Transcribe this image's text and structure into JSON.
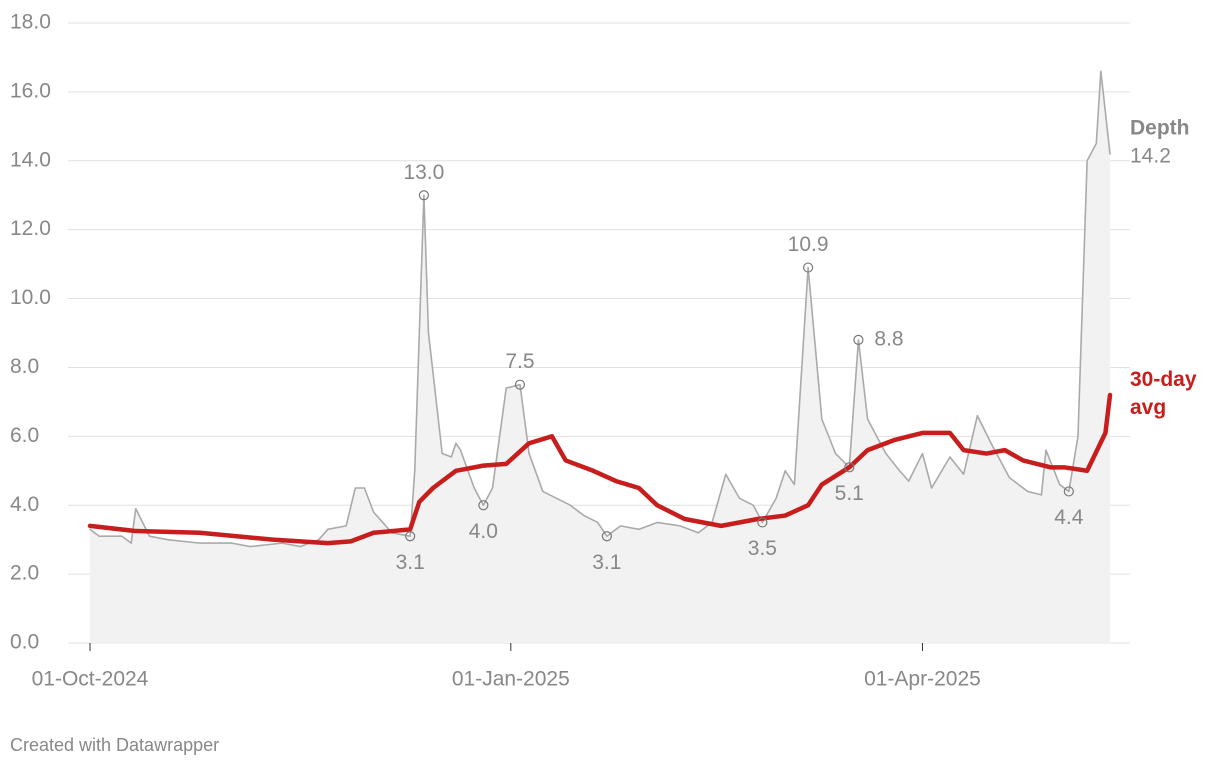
{
  "chart_data": {
    "type": "line",
    "footer": "Created with Datawrapper",
    "xlim": [
      "2024-10-01",
      "2025-05-12"
    ],
    "xticks": [
      {
        "value": "2024-10-01",
        "label": "01-Oct-2024"
      },
      {
        "value": "2025-01-01",
        "label": "01-Jan-2025"
      },
      {
        "value": "2025-04-01",
        "label": "01-Apr-2025"
      }
    ],
    "ylim": [
      0,
      18
    ],
    "yticks": [
      {
        "value": 0,
        "label": "0.0"
      },
      {
        "value": 2,
        "label": "2.0"
      },
      {
        "value": 4,
        "label": "4.0"
      },
      {
        "value": 6,
        "label": "6.0"
      },
      {
        "value": 8,
        "label": "8.0"
      },
      {
        "value": 10,
        "label": "10.0"
      },
      {
        "value": 12,
        "label": "12.0"
      },
      {
        "value": 14,
        "label": "14.0"
      },
      {
        "value": 16,
        "label": "16.0"
      },
      {
        "value": 18,
        "label": "18.0"
      }
    ],
    "grid": true,
    "series": [
      {
        "name": "Depth",
        "color": "#aaaaaa",
        "area_color": "#f2f2f2",
        "end_label": "14.2",
        "x": [
          "2024-10-01",
          "2024-10-03",
          "2024-10-08",
          "2024-10-10",
          "2024-10-11",
          "2024-10-14",
          "2024-10-18",
          "2024-10-25",
          "2024-11-01",
          "2024-11-05",
          "2024-11-12",
          "2024-11-16",
          "2024-11-20",
          "2024-11-22",
          "2024-11-26",
          "2024-11-28",
          "2024-11-30",
          "2024-12-02",
          "2024-12-06",
          "2024-12-10",
          "2024-12-11",
          "2024-12-13",
          "2024-12-14",
          "2024-12-17",
          "2024-12-19",
          "2024-12-20",
          "2024-12-21",
          "2024-12-24",
          "2024-12-26",
          "2024-12-28",
          "2024-12-31",
          "2025-01-03",
          "2025-01-05",
          "2025-01-08",
          "2025-01-11",
          "2025-01-14",
          "2025-01-17",
          "2025-01-20",
          "2025-01-22",
          "2025-01-25",
          "2025-01-29",
          "2025-02-02",
          "2025-02-07",
          "2025-02-11",
          "2025-02-14",
          "2025-02-17",
          "2025-02-20",
          "2025-02-23",
          "2025-02-25",
          "2025-02-28",
          "2025-03-02",
          "2025-03-04",
          "2025-03-07",
          "2025-03-10",
          "2025-03-13",
          "2025-03-16",
          "2025-03-18",
          "2025-03-20",
          "2025-03-24",
          "2025-03-27",
          "2025-03-29",
          "2025-04-01",
          "2025-04-03",
          "2025-04-07",
          "2025-04-10",
          "2025-04-13",
          "2025-04-16",
          "2025-04-20",
          "2025-04-24",
          "2025-04-27",
          "2025-04-28",
          "2025-05-01",
          "2025-05-03",
          "2025-05-05",
          "2025-05-07",
          "2025-05-09",
          "2025-05-10",
          "2025-05-12"
        ],
        "values": [
          3.3,
          3.1,
          3.1,
          2.9,
          3.9,
          3.1,
          3.0,
          2.9,
          2.9,
          2.8,
          2.9,
          2.8,
          3.0,
          3.3,
          3.4,
          4.5,
          4.5,
          3.8,
          3.2,
          3.1,
          5.0,
          13.0,
          9.0,
          5.5,
          5.4,
          5.8,
          5.6,
          4.5,
          4.0,
          4.5,
          7.4,
          7.5,
          5.5,
          4.4,
          4.2,
          4.0,
          3.7,
          3.5,
          3.1,
          3.4,
          3.3,
          3.5,
          3.4,
          3.2,
          3.5,
          4.9,
          4.2,
          4.0,
          3.5,
          4.2,
          5.0,
          4.6,
          10.9,
          6.5,
          5.5,
          5.1,
          8.8,
          6.5,
          5.5,
          5.0,
          4.7,
          5.5,
          4.5,
          5.4,
          4.9,
          6.6,
          5.8,
          4.8,
          4.4,
          4.3,
          5.6,
          4.6,
          4.4,
          6.0,
          14.0,
          14.5,
          16.6,
          14.2
        ]
      },
      {
        "name": "30-day avg",
        "color": "#c71e1d",
        "x": [
          "2024-10-01",
          "2024-10-11",
          "2024-10-25",
          "2024-11-10",
          "2024-11-22",
          "2024-11-27",
          "2024-12-02",
          "2024-12-10",
          "2024-12-12",
          "2024-12-15",
          "2024-12-20",
          "2024-12-26",
          "2024-12-31",
          "2025-01-05",
          "2025-01-10",
          "2025-01-13",
          "2025-01-19",
          "2025-01-24",
          "2025-01-29",
          "2025-02-02",
          "2025-02-08",
          "2025-02-16",
          "2025-02-24",
          "2025-03-02",
          "2025-03-07",
          "2025-03-10",
          "2025-03-16",
          "2025-03-20",
          "2025-03-26",
          "2025-04-01",
          "2025-04-07",
          "2025-04-10",
          "2025-04-15",
          "2025-04-19",
          "2025-04-23",
          "2025-04-29",
          "2025-05-02",
          "2025-05-07",
          "2025-05-11",
          "2025-05-12"
        ],
        "values": [
          3.4,
          3.25,
          3.2,
          3.0,
          2.9,
          2.95,
          3.2,
          3.3,
          4.1,
          4.5,
          5.0,
          5.15,
          5.2,
          5.8,
          6.0,
          5.3,
          5.0,
          4.7,
          4.5,
          4.0,
          3.6,
          3.4,
          3.6,
          3.7,
          4.0,
          4.6,
          5.1,
          5.6,
          5.9,
          6.1,
          6.1,
          5.6,
          5.5,
          5.6,
          5.3,
          5.1,
          5.1,
          5.0,
          6.1,
          7.2
        ]
      }
    ],
    "annotations": [
      {
        "x": "2024-12-13",
        "value": 13.0,
        "label": "13.0",
        "position": "above"
      },
      {
        "x": "2024-12-10",
        "value": 3.1,
        "label": "3.1",
        "position": "below"
      },
      {
        "x": "2024-12-26",
        "value": 4.0,
        "label": "4.0",
        "position": "below"
      },
      {
        "x": "2025-01-03",
        "value": 7.5,
        "label": "7.5",
        "position": "above"
      },
      {
        "x": "2025-01-22",
        "value": 3.1,
        "label": "3.1",
        "position": "below"
      },
      {
        "x": "2025-02-25",
        "value": 3.5,
        "label": "3.5",
        "position": "below"
      },
      {
        "x": "2025-03-07",
        "value": 10.9,
        "label": "10.9",
        "position": "above"
      },
      {
        "x": "2025-03-16",
        "value": 5.1,
        "label": "5.1",
        "position": "below"
      },
      {
        "x": "2025-03-18",
        "value": 8.8,
        "label": "8.8",
        "position": "right"
      },
      {
        "x": "2025-05-03",
        "value": 4.4,
        "label": "4.4",
        "position": "below"
      }
    ]
  }
}
